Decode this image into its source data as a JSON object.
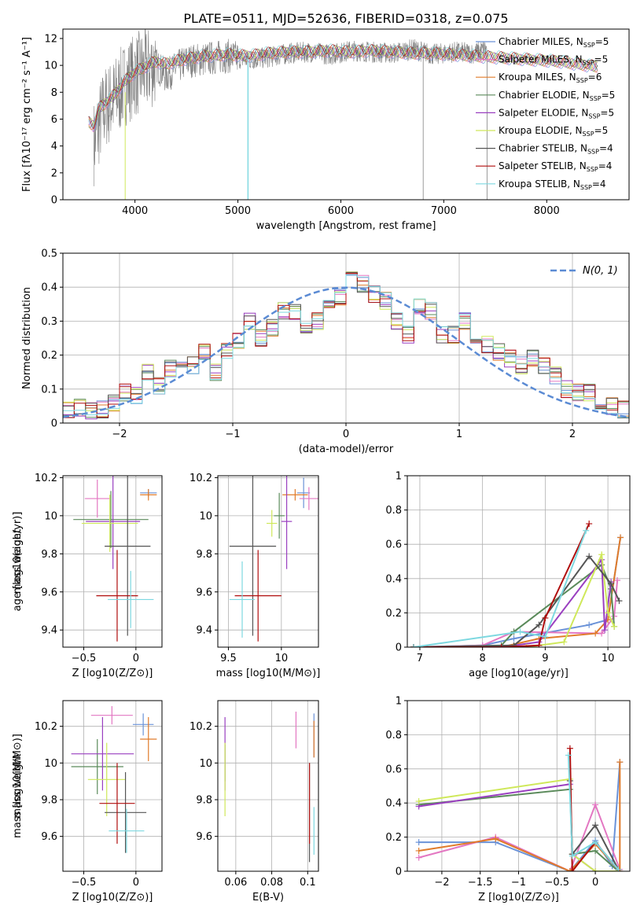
{
  "title": "PLATE=0511, MJD=52636, FIBERID=0318, z=0.075",
  "colors": [
    "#6a92d8",
    "#e377c2",
    "#e07b2a",
    "#5a8a5a",
    "#9a3fc0",
    "#cfe85a",
    "#555555",
    "#b00e0e",
    "#7dd8e0"
  ],
  "legend_sub": "SSP",
  "chart_data": [
    {
      "type": "line",
      "xlabel": "wavelength [Angstrom, rest frame]",
      "ylabel": "Flux [fλ10⁻¹⁷ erg cm⁻² s⁻¹ A⁻¹]",
      "xlim": [
        3300,
        8800
      ],
      "ylim": [
        0,
        12.7
      ],
      "xticks": [
        4000,
        5000,
        6000,
        7000,
        8000
      ],
      "yticks": [
        0,
        2,
        4,
        6,
        8,
        10,
        12
      ],
      "legend_position": "right",
      "series_names": [
        "Chabrier MILES, N",
        "Salpeter MILES, N",
        "Kroupa MILES, N",
        "Chabrier ELODIE, N",
        "Salpeter ELODIE, N",
        "Kroupa ELODIE, N",
        "Chabrier STELIB, N",
        "Salpeter STELIB, N",
        "Kroupa STELIB, N"
      ],
      "n_ssp": [
        "5",
        "5",
        "6",
        "5",
        "5",
        "5",
        "4",
        "4",
        "4"
      ],
      "data_x": [
        3600,
        3700,
        3800,
        3900,
        4000,
        4100,
        4200,
        4300,
        4400,
        4500,
        4700,
        4900,
        5100,
        5300,
        5500,
        5700,
        5900,
        6100,
        6300,
        6500,
        6700,
        6900,
        7100,
        7300,
        7400
      ],
      "data_y": [
        4.2,
        6.8,
        7.5,
        8.6,
        9.3,
        9.6,
        10.1,
        9.2,
        9.8,
        10.3,
        10.5,
        10.7,
        10.4,
        10.6,
        10.9,
        11.0,
        10.8,
        11.1,
        11.0,
        10.9,
        11.2,
        10.8,
        11.0,
        10.9,
        11.2
      ],
      "model_x": [
        3550,
        3600,
        3650,
        3700,
        3800,
        3900,
        4000,
        4100,
        4200,
        4300,
        4500,
        4700,
        4900,
        5100,
        5300,
        5500,
        5700,
        5900,
        6100,
        6300,
        6500,
        6700,
        6900,
        7100,
        7300,
        7500,
        7700,
        7900,
        8100,
        8300,
        8500
      ],
      "model_y": [
        5.8,
        5.5,
        6.8,
        7.1,
        7.8,
        8.8,
        9.5,
        9.9,
        10.3,
        10.1,
        10.5,
        10.7,
        10.8,
        10.7,
        10.9,
        11.0,
        11.0,
        11.1,
        11.0,
        11.1,
        11.0,
        10.9,
        10.9,
        10.8,
        10.7,
        10.6,
        10.5,
        10.4,
        10.3,
        10.1,
        9.9
      ]
    },
    {
      "type": "bar",
      "xlabel": "(data-model)/error",
      "ylabel": "Normed distribution",
      "xlim": [
        -2.5,
        2.5
      ],
      "ylim": [
        0,
        0.5
      ],
      "xticks": [
        -2,
        -1,
        0,
        1,
        2
      ],
      "yticks": [
        0.0,
        0.1,
        0.2,
        0.3,
        0.4,
        0.5
      ],
      "bin_edges": [
        -2.5,
        -2.4,
        -2.3,
        -2.2,
        -2.1,
        -2.0,
        -1.9,
        -1.8,
        -1.7,
        -1.6,
        -1.5,
        -1.4,
        -1.3,
        -1.2,
        -1.1,
        -1.0,
        -0.9,
        -0.8,
        -0.7,
        -0.6,
        -0.5,
        -0.4,
        -0.3,
        -0.2,
        -0.1,
        0.0,
        0.1,
        0.2,
        0.3,
        0.4,
        0.5,
        0.6,
        0.7,
        0.8,
        0.9,
        1.0,
        1.1,
        1.2,
        1.3,
        1.4,
        1.5,
        1.6,
        1.7,
        1.8,
        1.9,
        2.0,
        2.1,
        2.2,
        2.3,
        2.4,
        2.5
      ],
      "hist": [
        0.04,
        0.045,
        0.035,
        0.04,
        0.06,
        0.09,
        0.08,
        0.15,
        0.11,
        0.16,
        0.19,
        0.17,
        0.21,
        0.15,
        0.21,
        0.24,
        0.3,
        0.25,
        0.28,
        0.33,
        0.33,
        0.29,
        0.3,
        0.35,
        0.37,
        0.42,
        0.41,
        0.38,
        0.36,
        0.3,
        0.26,
        0.34,
        0.33,
        0.26,
        0.26,
        0.3,
        0.23,
        0.23,
        0.21,
        0.19,
        0.17,
        0.19,
        0.17,
        0.14,
        0.1,
        0.09,
        0.09,
        0.06,
        0.05,
        0.04
      ],
      "gauss_label": "N(0, 1)"
    },
    {
      "type": "scatter",
      "xlabel": "Z [log10(Z/Z⊙)]",
      "ylabel": "age  [log10(age/yr)]",
      "xlim": [
        -0.7,
        0.25
      ],
      "ylim": [
        9.31,
        10.21
      ],
      "xticks": [
        -0.5,
        0.0
      ],
      "yticks": [
        9.4,
        9.6,
        9.8,
        10.0,
        10.2
      ],
      "points": [
        {
          "x": 0.12,
          "y": 10.12,
          "xe": 0.08,
          "ye": 0.02
        },
        {
          "x": -0.37,
          "y": 10.09,
          "xe": 0.12,
          "ye": 0.1
        },
        {
          "x": 0.12,
          "y": 10.11,
          "xe": 0.08,
          "ye": 0.03
        },
        {
          "x": -0.24,
          "y": 9.98,
          "xe": 0.36,
          "ye": 0.15
        },
        {
          "x": -0.22,
          "y": 9.97,
          "xe": 0.26,
          "ye": 0.25
        },
        {
          "x": -0.25,
          "y": 9.96,
          "xe": 0.27,
          "ye": 0.15
        },
        {
          "x": -0.08,
          "y": 9.84,
          "xe": 0.22,
          "ye": 0.47
        },
        {
          "x": -0.18,
          "y": 9.58,
          "xe": 0.2,
          "ye": 0.24
        },
        {
          "x": -0.05,
          "y": 9.56,
          "xe": 0.22,
          "ye": 0.15
        }
      ]
    },
    {
      "type": "scatter",
      "xlabel": "mass [log10(M/M⊙)]",
      "ylabel": "",
      "xlim": [
        9.4,
        10.35
      ],
      "ylim": [
        9.31,
        10.21
      ],
      "xticks": [
        9.5,
        10.0
      ],
      "yticks": [
        9.4,
        9.6,
        9.8,
        10.0,
        10.2
      ],
      "points": [
        {
          "x": 10.21,
          "y": 10.12,
          "xe": 0.06,
          "ye": 0.08
        },
        {
          "x": 10.26,
          "y": 10.09,
          "xe": 0.09,
          "ye": 0.06
        },
        {
          "x": 10.13,
          "y": 10.11,
          "xe": 0.12,
          "ye": 0.03
        },
        {
          "x": 9.98,
          "y": 10.0,
          "xe": 0.05,
          "ye": 0.12
        },
        {
          "x": 10.05,
          "y": 9.97,
          "xe": 0.05,
          "ye": 0.25
        },
        {
          "x": 9.91,
          "y": 9.96,
          "xe": 0.05,
          "ye": 0.07
        },
        {
          "x": 9.73,
          "y": 9.84,
          "xe": 0.22,
          "ye": 0.47
        },
        {
          "x": 9.78,
          "y": 9.58,
          "xe": 0.22,
          "ye": 0.24
        },
        {
          "x": 9.63,
          "y": 9.56,
          "xe": 0.12,
          "ye": 0.2
        }
      ]
    },
    {
      "type": "line",
      "xlabel": "age  [log10(age/yr)]",
      "ylabel": "mass weight",
      "xlim": [
        6.8,
        10.35
      ],
      "ylim": [
        0,
        1.0
      ],
      "xticks": [
        7,
        8,
        9,
        10
      ],
      "yticks": [
        0.0,
        0.2,
        0.4,
        0.6,
        0.8,
        1.0
      ],
      "series": [
        {
          "x": [
            6.9,
            8.0,
            8.5,
            9.7,
            10.0,
            10.2
          ],
          "y": [
            0.0,
            0.01,
            0.05,
            0.13,
            0.16,
            0.64
          ]
        },
        {
          "x": [
            6.9,
            8.0,
            8.5,
            9.9,
            10.1,
            10.15
          ],
          "y": [
            0.0,
            0.01,
            0.09,
            0.08,
            0.18,
            0.39
          ]
        },
        {
          "x": [
            6.9,
            8.3,
            8.9,
            9.8,
            10.0,
            10.2
          ],
          "y": [
            0.0,
            0.0,
            0.05,
            0.08,
            0.16,
            0.64
          ]
        },
        {
          "x": [
            6.9,
            8.3,
            8.5,
            9.9,
            10.05,
            10.1
          ],
          "y": [
            0.0,
            0.01,
            0.09,
            0.48,
            0.34,
            0.12
          ]
        },
        {
          "x": [
            6.9,
            8.3,
            8.9,
            9.9,
            9.95,
            10.05
          ],
          "y": [
            0.0,
            0.0,
            0.03,
            0.51,
            0.1,
            0.38
          ]
        },
        {
          "x": [
            6.9,
            8.7,
            9.3,
            9.9,
            10.0,
            10.1
          ],
          "y": [
            0.0,
            0.0,
            0.03,
            0.54,
            0.2,
            0.12
          ]
        },
        {
          "x": [
            6.9,
            8.5,
            8.9,
            9.7,
            10.05,
            10.18
          ],
          "y": [
            0.0,
            0.01,
            0.13,
            0.53,
            0.37,
            0.27
          ]
        },
        {
          "x": [
            6.9,
            8.3,
            8.9,
            9.0,
            9.7
          ],
          "y": [
            0.0,
            0.0,
            0.01,
            0.17,
            0.72
          ]
        },
        {
          "x": [
            6.9,
            8.6,
            9.0,
            9.65
          ],
          "y": [
            0.0,
            0.09,
            0.06,
            0.68
          ]
        }
      ]
    },
    {
      "type": "scatter",
      "xlabel": "Z [log10(Z/Z⊙)]",
      "ylabel": "mass [log10(M/M⊙)]",
      "xlim": [
        -0.7,
        0.25
      ],
      "ylim": [
        9.41,
        10.34
      ],
      "xticks": [
        -0.5,
        0.0
      ],
      "yticks": [
        9.6,
        9.8,
        10.0,
        10.2
      ],
      "points": [
        {
          "x": 0.07,
          "y": 10.21,
          "xe": 0.1,
          "ye": 0.06
        },
        {
          "x": -0.23,
          "y": 10.26,
          "xe": 0.2,
          "ye": 0.05
        },
        {
          "x": 0.12,
          "y": 10.13,
          "xe": 0.08,
          "ye": 0.12
        },
        {
          "x": -0.37,
          "y": 9.98,
          "xe": 0.25,
          "ye": 0.15
        },
        {
          "x": -0.32,
          "y": 10.05,
          "xe": 0.3,
          "ye": 0.2
        },
        {
          "x": -0.28,
          "y": 9.91,
          "xe": 0.18,
          "ye": 0.2
        },
        {
          "x": -0.1,
          "y": 9.73,
          "xe": 0.2,
          "ye": 0.22
        },
        {
          "x": -0.18,
          "y": 9.78,
          "xe": 0.17,
          "ye": 0.22
        },
        {
          "x": -0.09,
          "y": 9.63,
          "xe": 0.17,
          "ye": 0.12
        }
      ]
    },
    {
      "type": "scatter",
      "xlabel": "E(B-V)",
      "ylabel": "",
      "xlim": [
        0.05,
        0.106
      ],
      "ylim": [
        9.41,
        10.34
      ],
      "xticks": [
        0.06,
        0.08,
        0.1
      ],
      "yticks": [
        9.6,
        9.8,
        10.0,
        10.2
      ],
      "points": [
        {
          "x": 0.1035,
          "y": 10.15,
          "ye": 0.12
        },
        {
          "x": 0.0935,
          "y": 10.18,
          "ye": 0.1
        },
        {
          "x": 0.1035,
          "y": 10.13,
          "ye": 0.1
        },
        {
          "x": 0.054,
          "y": 10.0,
          "ye": 0.1
        },
        {
          "x": 0.054,
          "y": 10.05,
          "ye": 0.2
        },
        {
          "x": 0.054,
          "y": 9.91,
          "ye": 0.2
        },
        {
          "x": 0.101,
          "y": 9.73,
          "ye": 0.27
        },
        {
          "x": 0.101,
          "y": 9.78,
          "ye": 0.22
        },
        {
          "x": 0.1035,
          "y": 9.63,
          "ye": 0.13
        }
      ]
    },
    {
      "type": "line",
      "xlabel": "Z [log10(Z/Z⊙)]",
      "ylabel": "mass weight",
      "xlim": [
        -2.45,
        0.45
      ],
      "ylim": [
        0,
        1.0
      ],
      "xticks": [
        -2.0,
        -1.5,
        -1.0,
        -0.5,
        0.0
      ],
      "yticks": [
        0.0,
        0.2,
        0.4,
        0.6,
        0.8,
        1.0
      ],
      "series": [
        {
          "x": [
            -2.3,
            -1.3,
            -0.33,
            0.0,
            0.22,
            0.32
          ],
          "y": [
            0.17,
            0.17,
            0.0,
            0.18,
            0.03,
            0.64
          ]
        },
        {
          "x": [
            -2.3,
            -1.3,
            -0.33,
            0.0,
            0.32
          ],
          "y": [
            0.08,
            0.2,
            0.0,
            0.39,
            0.01
          ]
        },
        {
          "x": [
            -2.3,
            -1.3,
            -0.33,
            0.0,
            0.32,
            0.32
          ],
          "y": [
            0.12,
            0.19,
            0.0,
            0.16,
            0.0,
            0.64
          ]
        },
        {
          "x": [
            -2.3,
            -0.33,
            -0.3,
            0.0,
            0.3
          ],
          "y": [
            0.39,
            0.48,
            0.1,
            0.12,
            0.0
          ]
        },
        {
          "x": [
            -2.3,
            -0.33,
            -0.3,
            0.0,
            0.3
          ],
          "y": [
            0.38,
            0.51,
            0.1,
            0.0,
            0.0
          ]
        },
        {
          "x": [
            -2.3,
            -0.33,
            -0.3,
            0.0,
            0.3
          ],
          "y": [
            0.41,
            0.54,
            0.1,
            0.0,
            0.0
          ]
        },
        {
          "x": [
            -0.33,
            -0.3,
            0.0,
            0.3
          ],
          "y": [
            0.53,
            0.1,
            0.27,
            0.01
          ]
        },
        {
          "x": [
            -0.33,
            -0.3,
            0.0,
            0.3
          ],
          "y": [
            0.72,
            0.0,
            0.17,
            0.01
          ]
        },
        {
          "x": [
            -0.35,
            -0.3,
            0.0,
            0.3
          ],
          "y": [
            0.68,
            0.09,
            0.17,
            0.01
          ]
        }
      ]
    }
  ]
}
